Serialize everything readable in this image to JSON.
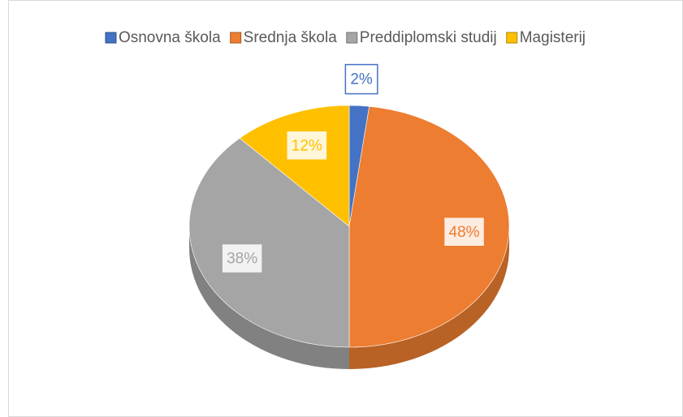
{
  "chart_data": {
    "type": "pie",
    "categories": [
      "Osnovna škola",
      "Srednja škola",
      "Preddiplomski studij",
      "Magisterij"
    ],
    "values": [
      2,
      48,
      38,
      12
    ],
    "value_labels": [
      "2%",
      "48%",
      "38%",
      "12%"
    ],
    "colors": [
      "#4472c4",
      "#ed7d31",
      "#a5a5a5",
      "#ffc000"
    ],
    "legend": "top"
  }
}
